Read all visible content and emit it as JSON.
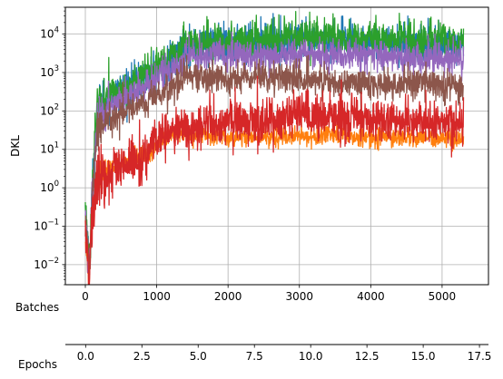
{
  "chart_data": {
    "type": "line",
    "title": "",
    "ylabel": "DKL",
    "xlabel_primary": "Batches",
    "xlabel_secondary": "Epochs",
    "yscale": "log",
    "ylim": [
      0.003,
      50000
    ],
    "xlim": [
      -280,
      5650
    ],
    "grid": true,
    "x_ticks": [
      0,
      1000,
      2000,
      3000,
      4000,
      5000
    ],
    "x_tick_labels": [
      "0",
      "1000",
      "2000",
      "3000",
      "4000",
      "5000"
    ],
    "y_ticks": [
      0.01,
      0.1,
      1,
      10,
      100,
      1000,
      10000
    ],
    "y_tick_labels": [
      {
        "base": "10",
        "exp": "−2"
      },
      {
        "base": "10",
        "exp": "−1"
      },
      {
        "base": "10",
        "exp": "0"
      },
      {
        "base": "10",
        "exp": "1"
      },
      {
        "base": "10",
        "exp": "2"
      },
      {
        "base": "10",
        "exp": "3"
      },
      {
        "base": "10",
        "exp": "4"
      }
    ],
    "epoch_axis": {
      "xlim": [
        -0.9,
        17.9
      ],
      "ticks": [
        0,
        2.5,
        5,
        7.5,
        10,
        12.5,
        15,
        17.5
      ],
      "tick_labels": [
        "0.0",
        "2.5",
        "5.0",
        "7.5",
        "10.0",
        "12.5",
        "15.0",
        "17.5"
      ]
    },
    "series": [
      {
        "color": "#1f77b4",
        "noise": 0.25,
        "x": [
          0,
          30,
          50,
          70,
          100,
          150,
          200,
          400,
          700,
          1000,
          1300,
          1400,
          1600,
          1900,
          1950,
          2000,
          2500,
          3000,
          4000,
          5000,
          5300
        ],
        "y": [
          0.3,
          0.05,
          0.008,
          0.03,
          1,
          30,
          150,
          250,
          500,
          1200,
          2500,
          5000,
          4500,
          6000,
          3500,
          5000,
          6000,
          6500,
          6000,
          5000,
          5000
        ]
      },
      {
        "color": "#ff7f0e",
        "noise": 0.12,
        "x": [
          0,
          30,
          50,
          70,
          100,
          150,
          200,
          400,
          700,
          900,
          1000,
          1300,
          1500,
          1700,
          2000,
          2500,
          3000,
          4000,
          5000,
          5300
        ],
        "y": [
          0.05,
          0.01,
          0.005,
          0.02,
          0.3,
          1.5,
          2.5,
          3.5,
          6,
          8,
          15,
          30,
          25,
          25,
          20,
          22,
          22,
          21,
          20,
          20
        ]
      },
      {
        "color": "#2ca02c",
        "noise": 0.22,
        "x": [
          0,
          30,
          50,
          70,
          100,
          150,
          200,
          400,
          700,
          1000,
          1300,
          1400,
          1600,
          1900,
          1950,
          2000,
          2500,
          3000,
          4000,
          5000,
          5300
        ],
        "y": [
          0.4,
          0.06,
          0.01,
          0.04,
          1.5,
          40,
          200,
          300,
          600,
          1500,
          3000,
          6500,
          5500,
          8000,
          4000,
          6500,
          8000,
          9000,
          8000,
          7000,
          6000
        ]
      },
      {
        "color": "#d62728",
        "noise": 0.3,
        "x": [
          0,
          30,
          50,
          70,
          100,
          150,
          200,
          400,
          700,
          900,
          1000,
          1300,
          1500,
          1700,
          2000,
          2500,
          3000,
          4000,
          5000,
          5300
        ],
        "y": [
          0.1,
          0.02,
          0.004,
          0.02,
          0.2,
          0.8,
          1.5,
          2.5,
          5,
          8,
          20,
          30,
          35,
          45,
          50,
          60,
          70,
          60,
          50,
          45
        ]
      },
      {
        "color": "#9467bd",
        "noise": 0.2,
        "x": [
          0,
          30,
          50,
          70,
          100,
          150,
          200,
          400,
          700,
          1000,
          1300,
          1400,
          1600,
          1900,
          1950,
          2000,
          2500,
          3000,
          4000,
          5000,
          5300
        ],
        "y": [
          0.2,
          0.04,
          0.006,
          0.03,
          0.8,
          25,
          90,
          150,
          300,
          700,
          1500,
          3000,
          2500,
          3500,
          2000,
          2800,
          3000,
          3000,
          2800,
          2200,
          2000
        ]
      },
      {
        "color": "#8c564b",
        "noise": 0.2,
        "x": [
          0,
          30,
          50,
          70,
          100,
          150,
          200,
          400,
          700,
          1000,
          1300,
          1400,
          1600,
          1900,
          1950,
          2000,
          2500,
          3000,
          4000,
          5000,
          5300
        ],
        "y": [
          0.15,
          0.03,
          0.005,
          0.02,
          0.5,
          15,
          50,
          80,
          120,
          250,
          500,
          1000,
          700,
          800,
          500,
          700,
          800,
          700,
          500,
          450,
          400
        ]
      }
    ],
    "draw_order": [
      0,
      1,
      2,
      4,
      5,
      3
    ]
  }
}
